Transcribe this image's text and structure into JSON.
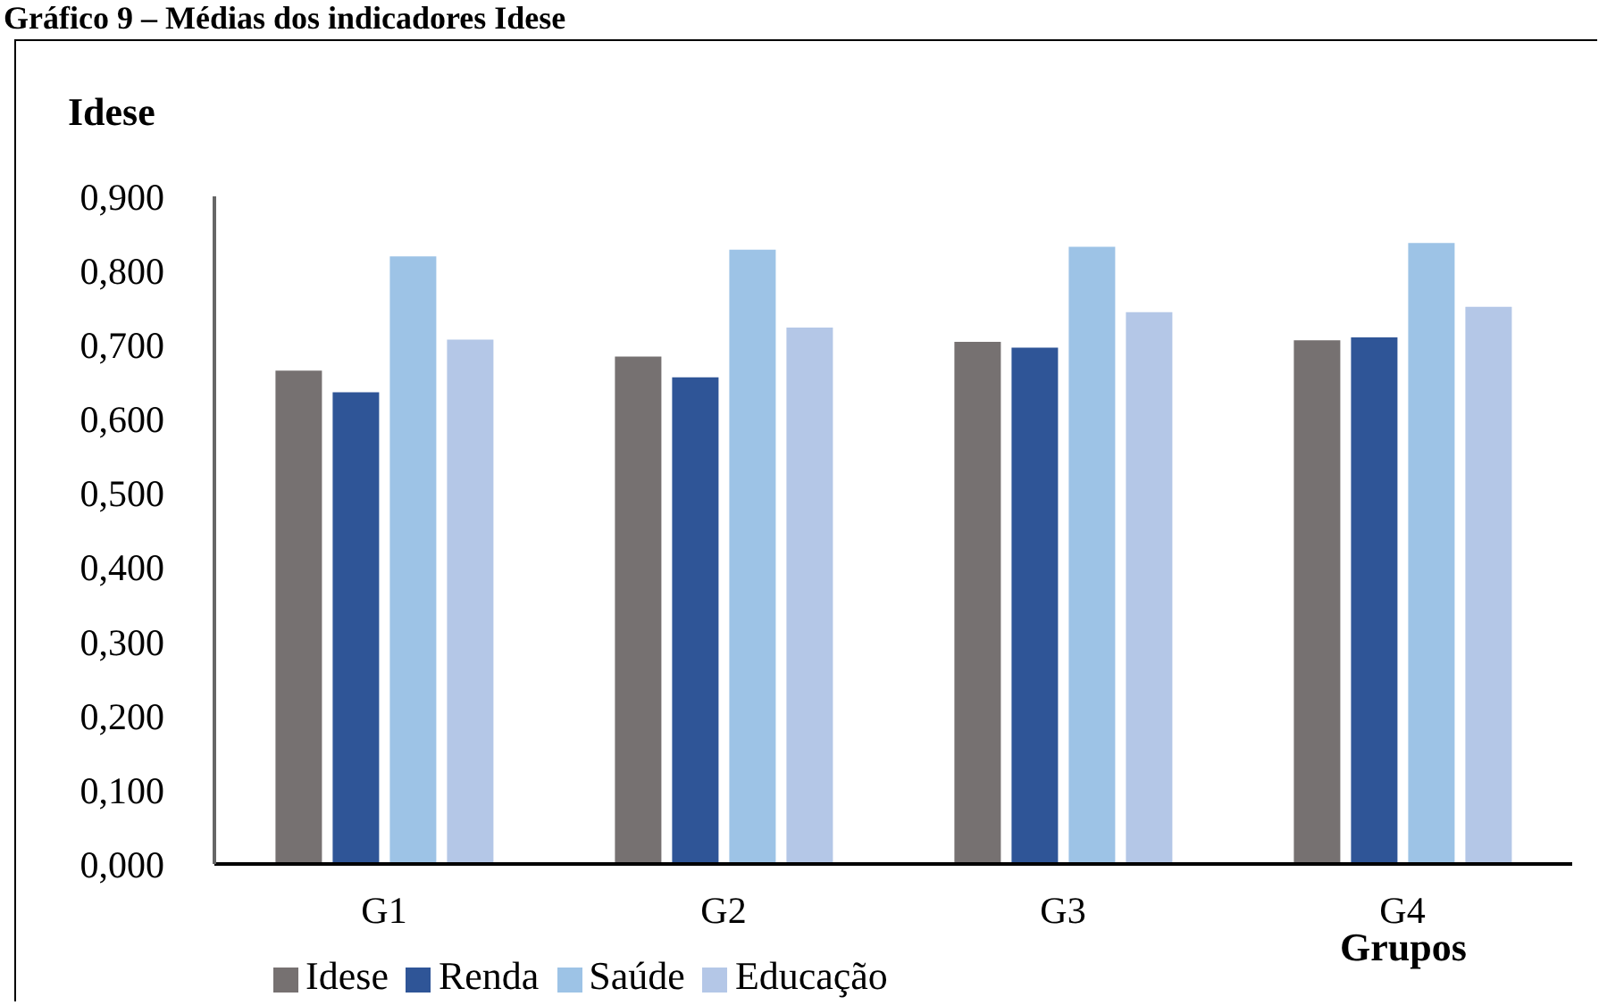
{
  "chart_data": {
    "type": "bar",
    "title": "Gráfico 9 – Médias dos indicadores Idese",
    "ylabel": "Idese",
    "xlabel": "Grupos",
    "categories": [
      "G1",
      "G2",
      "G3",
      "G4"
    ],
    "series": [
      {
        "name": "Idese",
        "color": "#767171",
        "values": [
          0.665,
          0.684,
          0.704,
          0.706
        ]
      },
      {
        "name": "Renda",
        "color": "#2f5597",
        "values": [
          0.636,
          0.656,
          0.696,
          0.71
        ]
      },
      {
        "name": "Saúde",
        "color": "#9dc3e6",
        "values": [
          0.819,
          0.828,
          0.832,
          0.837
        ]
      },
      {
        "name": "Educação",
        "color": "#b4c7e7",
        "values": [
          0.707,
          0.723,
          0.744,
          0.751
        ]
      }
    ],
    "ylim": [
      0,
      0.9
    ],
    "yticks": [
      {
        "value": 0,
        "label": "0,000"
      },
      {
        "value": 0.1,
        "label": "0,100"
      },
      {
        "value": 0.2,
        "label": "0,200"
      },
      {
        "value": 0.3,
        "label": "0,300"
      },
      {
        "value": 0.4,
        "label": "0,400"
      },
      {
        "value": 0.5,
        "label": "0,500"
      },
      {
        "value": 0.6,
        "label": "0,600"
      },
      {
        "value": 0.7,
        "label": "0,700"
      },
      {
        "value": 0.8,
        "label": "0,800"
      },
      {
        "value": 0.9,
        "label": "0,900"
      }
    ],
    "grid": false,
    "legend": "bottom"
  }
}
